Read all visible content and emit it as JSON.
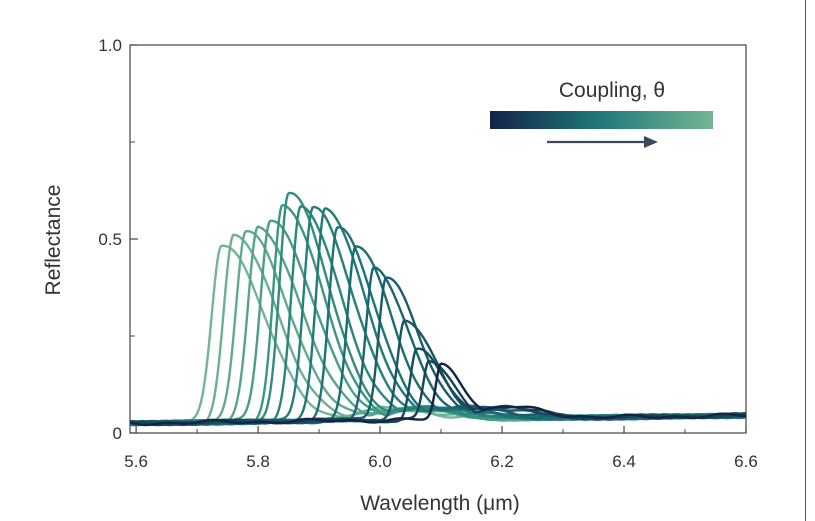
{
  "chart_data": {
    "type": "line",
    "title": "",
    "xlabel": "Wavelength (μm)",
    "ylabel": "Reflectance",
    "xlim": [
      5.59,
      6.6
    ],
    "ylim": [
      0,
      1.0
    ],
    "x_ticks": [
      {
        "value": 5.6,
        "label": "5.6"
      },
      {
        "value": 5.8,
        "label": "5.8"
      },
      {
        "value": 6.0,
        "label": "6.0"
      },
      {
        "value": 6.2,
        "label": "6.2"
      },
      {
        "value": 6.4,
        "label": "6.4"
      },
      {
        "value": 6.6,
        "label": "6.6"
      }
    ],
    "y_ticks": [
      {
        "value": 0,
        "label": "0"
      },
      {
        "value": 0.5,
        "label": "0.5"
      },
      {
        "value": 1.0,
        "label": "1.0"
      }
    ],
    "grid": false,
    "legend": {
      "title": "Coupling, θ",
      "placement": "top-right",
      "gradient_start": "#14234a",
      "gradient_mid": "#1f7a7a",
      "gradient_end": "#74b594",
      "arrow_color": "#3d4a5c"
    },
    "series_note_count": 18,
    "peaks": [
      {
        "center": 5.74,
        "height": 0.46,
        "width": 0.03,
        "color": "#74b594"
      },
      {
        "center": 5.76,
        "height": 0.48,
        "width": 0.03,
        "color": "#6cb090"
      },
      {
        "center": 5.78,
        "height": 0.49,
        "width": 0.03,
        "color": "#62aa8c"
      },
      {
        "center": 5.8,
        "height": 0.5,
        "width": 0.03,
        "color": "#58a489"
      },
      {
        "center": 5.82,
        "height": 0.52,
        "width": 0.03,
        "color": "#4c9d86"
      },
      {
        "center": 5.84,
        "height": 0.56,
        "width": 0.028,
        "color": "#3f9583"
      },
      {
        "center": 5.85,
        "height": 0.59,
        "width": 0.028,
        "color": "#328d80"
      },
      {
        "center": 5.87,
        "height": 0.55,
        "width": 0.028,
        "color": "#2a867d"
      },
      {
        "center": 5.89,
        "height": 0.55,
        "width": 0.028,
        "color": "#23807b"
      },
      {
        "center": 5.91,
        "height": 0.55,
        "width": 0.027,
        "color": "#1f7a7a"
      },
      {
        "center": 5.93,
        "height": 0.5,
        "width": 0.026,
        "color": "#1d7377"
      },
      {
        "center": 5.96,
        "height": 0.45,
        "width": 0.025,
        "color": "#1c6c73"
      },
      {
        "center": 5.99,
        "height": 0.39,
        "width": 0.024,
        "color": "#1b656f"
      },
      {
        "center": 6.01,
        "height": 0.37,
        "width": 0.023,
        "color": "#1a5d69"
      },
      {
        "center": 6.04,
        "height": 0.26,
        "width": 0.021,
        "color": "#195562"
      },
      {
        "center": 6.06,
        "height": 0.18,
        "width": 0.019,
        "color": "#184c5b"
      },
      {
        "center": 6.08,
        "height": 0.15,
        "width": 0.017,
        "color": "#174253"
      },
      {
        "center": 6.1,
        "height": 0.14,
        "width": 0.016,
        "color": "#14234a"
      }
    ],
    "baseline": {
      "left": 0.025,
      "right": 0.045,
      "noise": 0.006
    }
  }
}
